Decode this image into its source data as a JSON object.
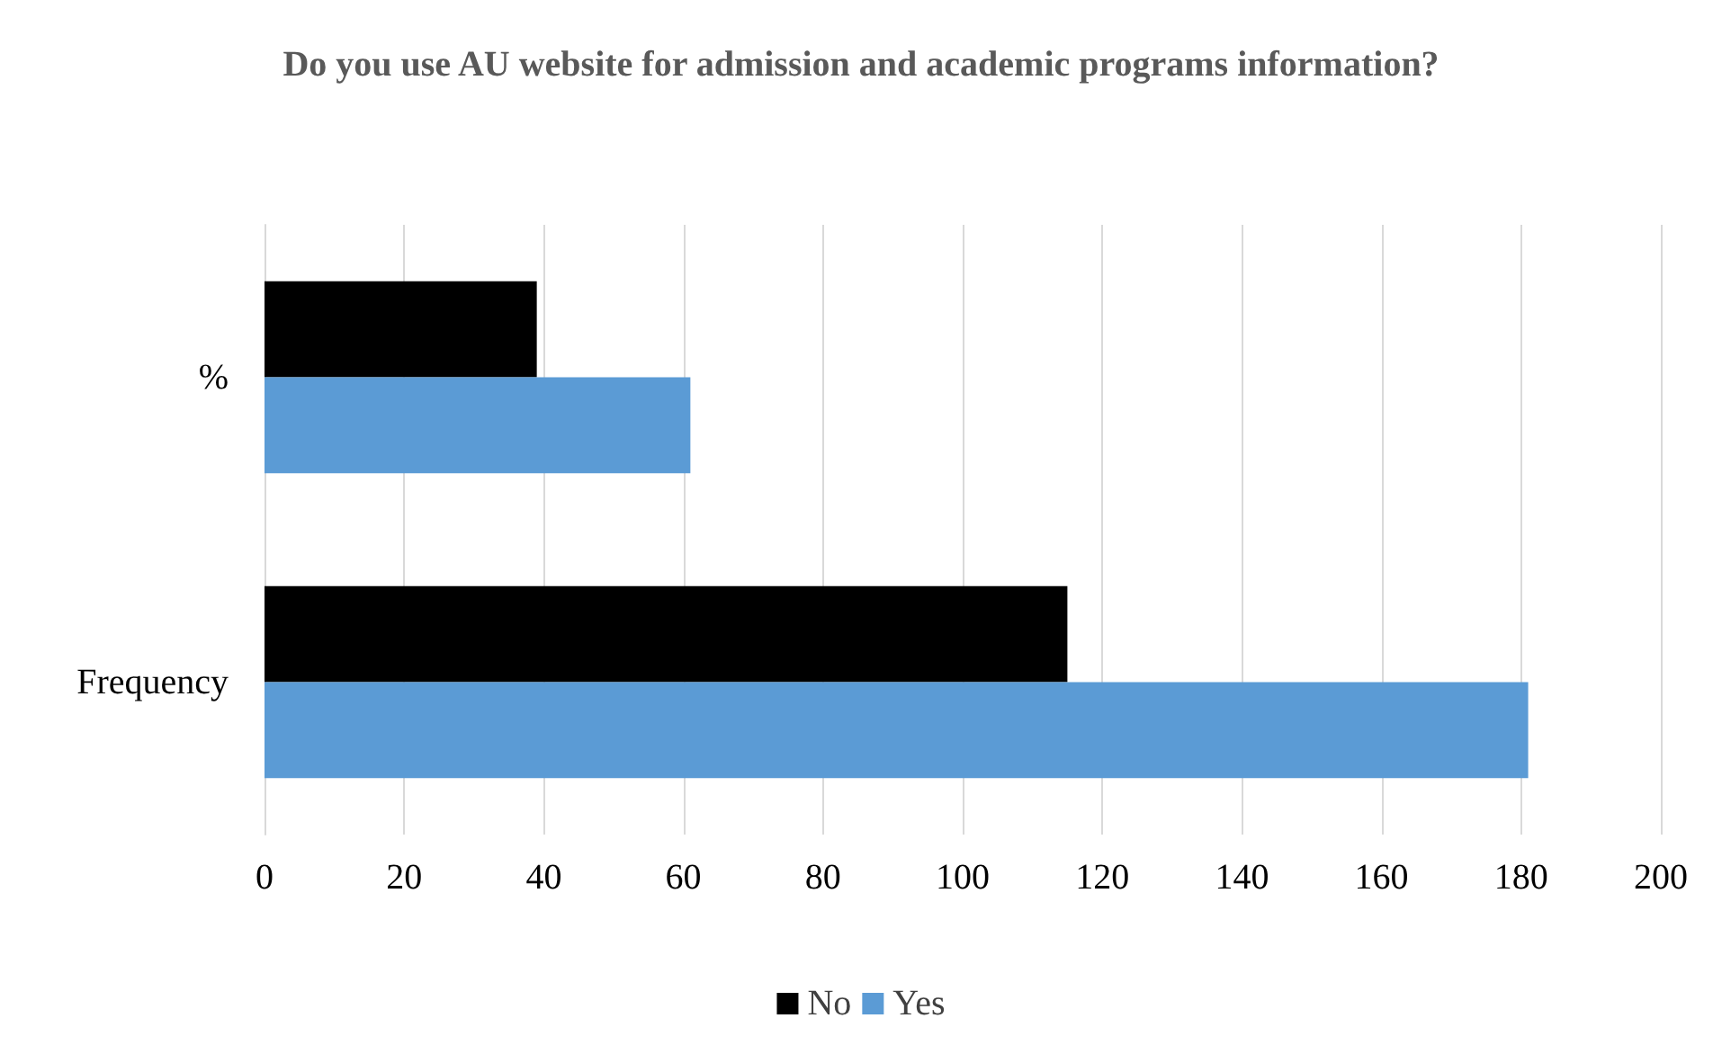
{
  "chart_data": {
    "type": "bar",
    "orientation": "horizontal",
    "title": "Do you use AU website for admission and academic programs information?",
    "categories": [
      "%",
      "Frequency"
    ],
    "series": [
      {
        "name": "No",
        "color": "#000000",
        "values": [
          39,
          115
        ]
      },
      {
        "name": "Yes",
        "color": "#5b9bd5",
        "values": [
          61,
          181
        ]
      }
    ],
    "xlim": [
      0,
      200
    ],
    "xticks": [
      0,
      20,
      40,
      60,
      80,
      100,
      120,
      140,
      160,
      180,
      200
    ],
    "grid": "x",
    "legend": "bottom"
  }
}
